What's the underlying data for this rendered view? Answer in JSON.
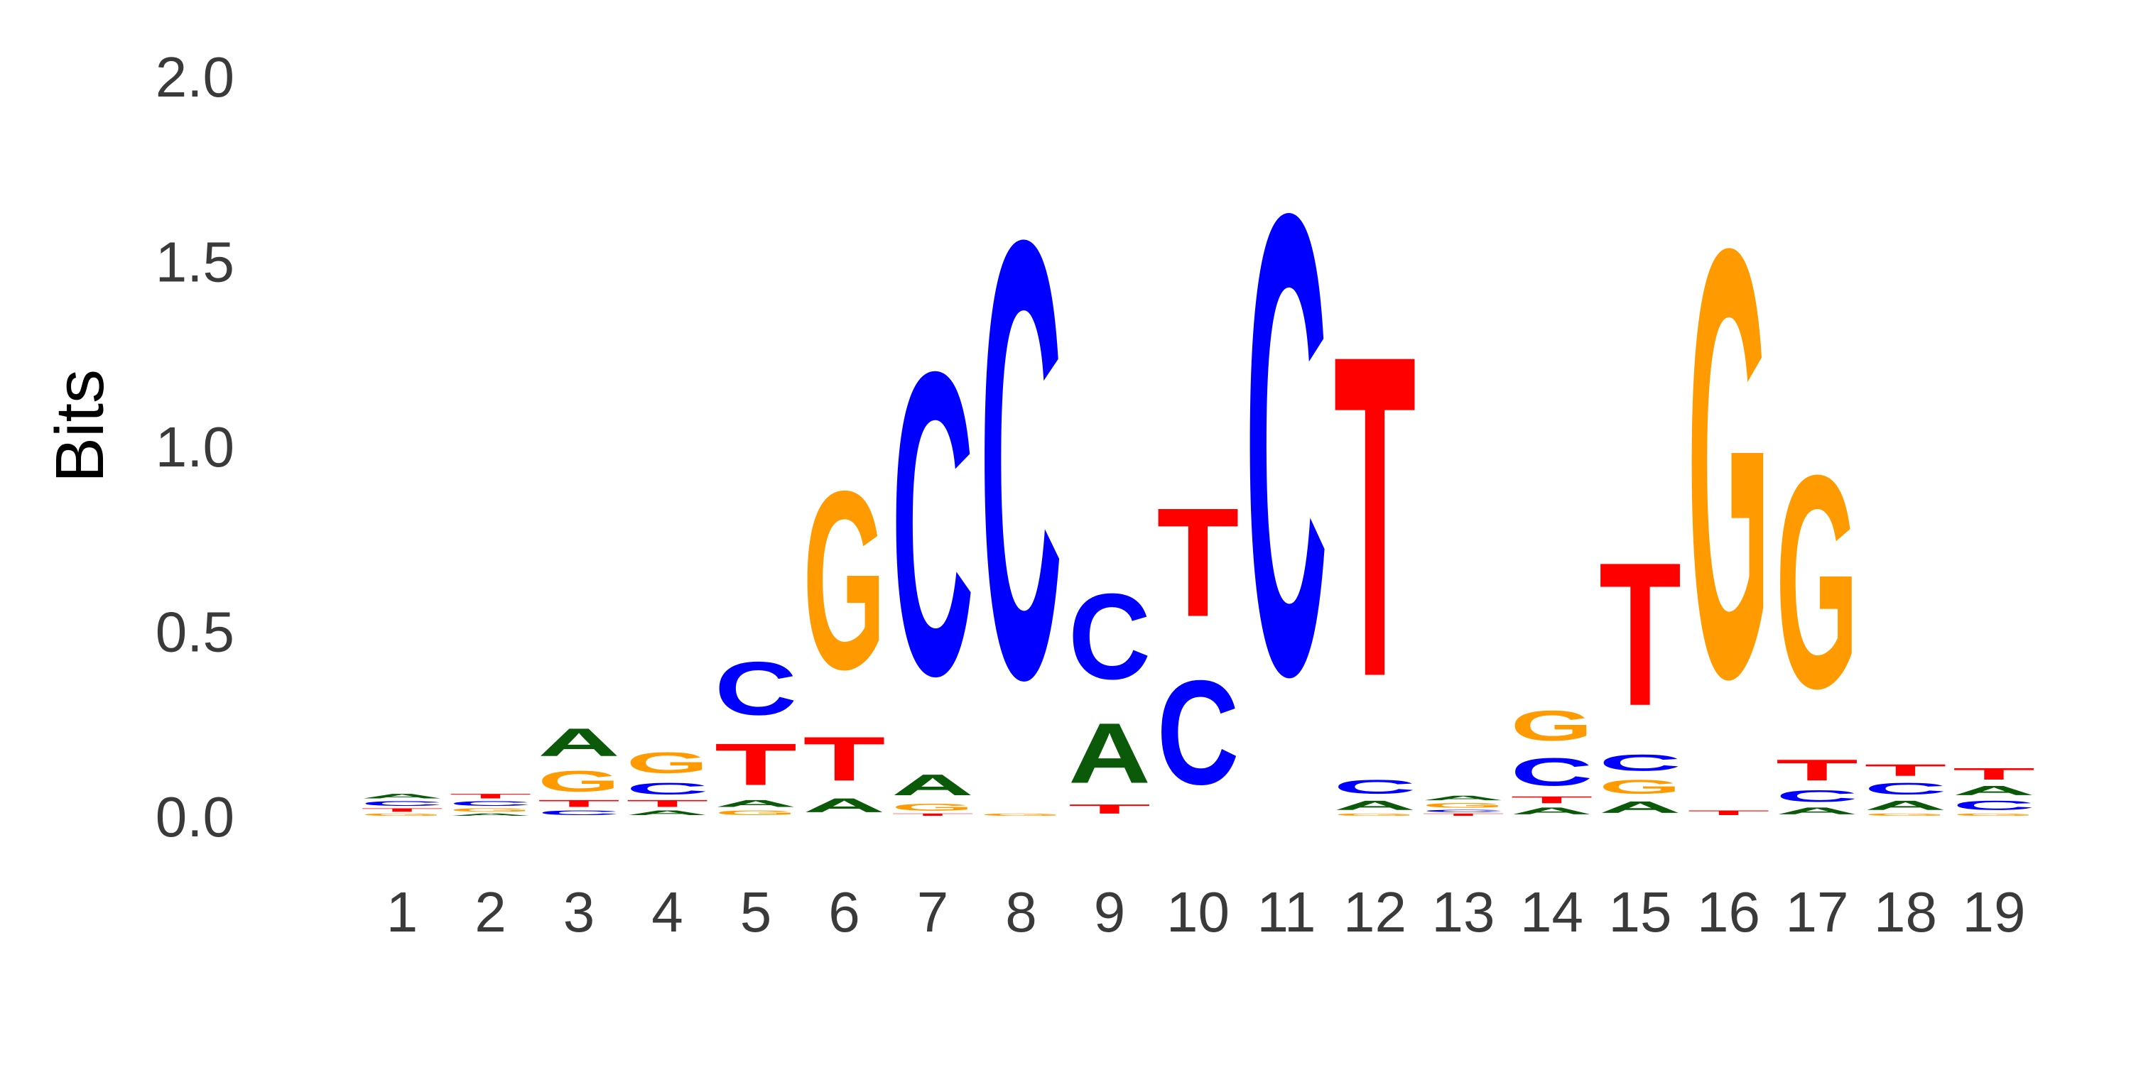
{
  "chart_data": {
    "type": "sequence-logo",
    "ylabel": "Bits",
    "ylim": [
      0,
      2.0
    ],
    "yticks": [
      "0.0",
      "0.5",
      "1.0",
      "1.5",
      "2.0"
    ],
    "ytick_values": [
      0,
      0.5,
      1.0,
      1.5,
      2.0
    ],
    "grid": false,
    "colors": {
      "A": "#0a5a0a",
      "C": "#0000ff",
      "G": "#ff9a00",
      "T": "#ff0000"
    },
    "positions": [
      {
        "label": "1",
        "letters": [
          {
            "base": "G",
            "bits": 0.01
          },
          {
            "base": "T",
            "bits": 0.015
          },
          {
            "base": "C",
            "bits": 0.02
          },
          {
            "base": "A",
            "bits": 0.02
          }
        ]
      },
      {
        "label": "2",
        "letters": [
          {
            "base": "A",
            "bits": 0.01
          },
          {
            "base": "G",
            "bits": 0.015
          },
          {
            "base": "C",
            "bits": 0.02
          },
          {
            "base": "T",
            "bits": 0.02
          }
        ]
      },
      {
        "label": "3",
        "letters": [
          {
            "base": "C",
            "bits": 0.02
          },
          {
            "base": "T",
            "bits": 0.03
          },
          {
            "base": "G",
            "bits": 0.09
          },
          {
            "base": "A",
            "bits": 0.12
          }
        ]
      },
      {
        "label": "4",
        "letters": [
          {
            "base": "A",
            "bits": 0.02
          },
          {
            "base": "T",
            "bits": 0.03
          },
          {
            "base": "C",
            "bits": 0.05
          },
          {
            "base": "G",
            "bits": 0.09
          }
        ]
      },
      {
        "label": "5",
        "letters": [
          {
            "base": "G",
            "bits": 0.02
          },
          {
            "base": "A",
            "bits": 0.03
          },
          {
            "base": "T",
            "bits": 0.18
          },
          {
            "base": "C",
            "bits": 0.23
          }
        ]
      },
      {
        "label": "6",
        "letters": [
          {
            "base": "A",
            "bits": 0.06
          },
          {
            "base": "T",
            "bits": 0.19
          },
          {
            "base": "G",
            "bits": 0.77
          }
        ]
      },
      {
        "label": "7",
        "letters": [
          {
            "base": "T",
            "bits": 0.01
          },
          {
            "base": "G",
            "bits": 0.03
          },
          {
            "base": "A",
            "bits": 0.09
          },
          {
            "base": "C",
            "bits": 1.31
          }
        ]
      },
      {
        "label": "8",
        "letters": [
          {
            "base": "G",
            "bits": 0.01
          },
          {
            "base": "C",
            "bits": 1.89
          }
        ]
      },
      {
        "label": "9",
        "letters": [
          {
            "base": "T",
            "bits": 0.04
          },
          {
            "base": "A",
            "bits": 0.26
          },
          {
            "base": "C",
            "bits": 0.37
          }
        ]
      },
      {
        "label": "10",
        "letters": [
          {
            "base": "C",
            "bits": 0.45
          },
          {
            "base": "T",
            "bits": 0.47
          }
        ]
      },
      {
        "label": "11",
        "letters": [
          {
            "base": "C",
            "bits": 1.99
          }
        ]
      },
      {
        "label": "12",
        "letters": [
          {
            "base": "G",
            "bits": 0.01
          },
          {
            "base": "A",
            "bits": 0.04
          },
          {
            "base": "C",
            "bits": 0.06
          },
          {
            "base": "T",
            "bits": 1.39
          }
        ]
      },
      {
        "label": "13",
        "letters": [
          {
            "base": "T",
            "bits": 0.01
          },
          {
            "base": "C",
            "bits": 0.01
          },
          {
            "base": "G",
            "bits": 0.02
          },
          {
            "base": "A",
            "bits": 0.02
          }
        ]
      },
      {
        "label": "14",
        "letters": [
          {
            "base": "A",
            "bits": 0.03
          },
          {
            "base": "T",
            "bits": 0.03
          },
          {
            "base": "C",
            "bits": 0.12
          },
          {
            "base": "G",
            "bits": 0.13
          }
        ]
      },
      {
        "label": "15",
        "letters": [
          {
            "base": "A",
            "bits": 0.05
          },
          {
            "base": "G",
            "bits": 0.06
          },
          {
            "base": "C",
            "bits": 0.07
          },
          {
            "base": "T",
            "bits": 0.62
          }
        ]
      },
      {
        "label": "16",
        "letters": [
          {
            "base": "T",
            "bits": 0.02
          },
          {
            "base": "G",
            "bits": 1.85
          }
        ]
      },
      {
        "label": "17",
        "letters": [
          {
            "base": "A",
            "bits": 0.03
          },
          {
            "base": "C",
            "bits": 0.05
          },
          {
            "base": "T",
            "bits": 0.09
          },
          {
            "base": "G",
            "bits": 0.92
          }
        ]
      },
      {
        "label": "18",
        "letters": [
          {
            "base": "G",
            "bits": 0.01
          },
          {
            "base": "A",
            "bits": 0.04
          },
          {
            "base": "C",
            "bits": 0.05
          },
          {
            "base": "T",
            "bits": 0.05
          }
        ]
      },
      {
        "label": "19",
        "letters": [
          {
            "base": "G",
            "bits": 0.01
          },
          {
            "base": "C",
            "bits": 0.04
          },
          {
            "base": "A",
            "bits": 0.04
          },
          {
            "base": "T",
            "bits": 0.05
          }
        ]
      }
    ]
  }
}
